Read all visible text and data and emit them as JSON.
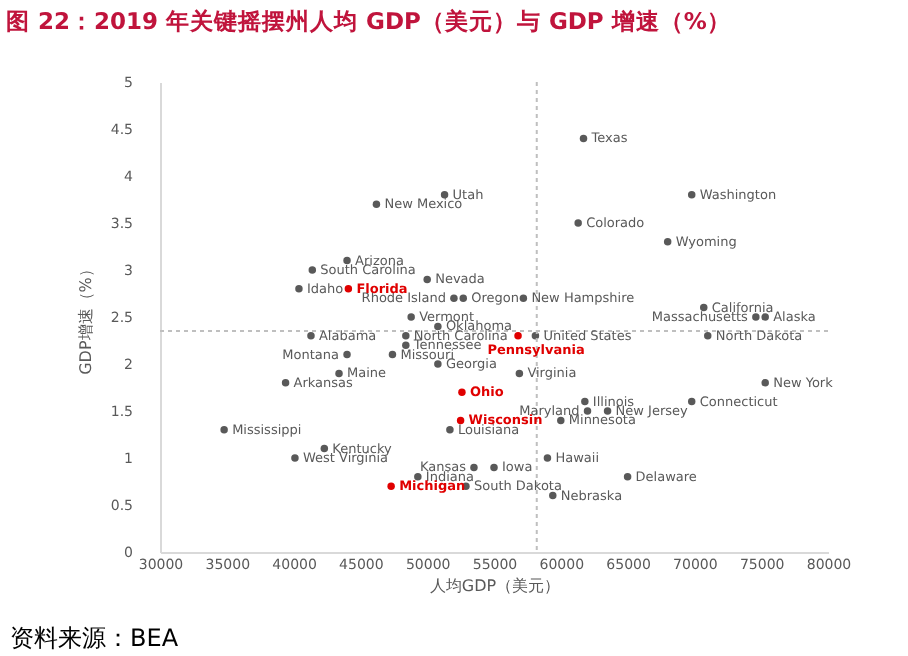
{
  "chart_data": {
    "type": "scatter",
    "title": "图 22：2019 年关键摇摆州人均 GDP（美元）与 GDP 增速（%）",
    "xlabel": "人均GDP（美元）",
    "ylabel": "GDP增速（%）",
    "xlim": [
      30000,
      80000
    ],
    "xticks": [
      30000,
      35000,
      40000,
      45000,
      50000,
      55000,
      60000,
      65000,
      70000,
      75000,
      80000
    ],
    "ylim": [
      0,
      5
    ],
    "yticks": [
      0,
      0.5,
      1,
      1.5,
      2,
      2.5,
      3,
      3.5,
      4,
      4.5,
      5
    ],
    "grid": false,
    "marker": "circle",
    "series": [
      {
        "color": "#595959",
        "x": [
          51300,
          46200,
          44000,
          41400,
          40400,
          50000,
          52000,
          52700,
          48800,
          50800,
          41300,
          48400,
          48400,
          44000,
          47400,
          61700,
          69800,
          61300,
          68000,
          70700,
          74600,
          75300,
          71000,
          57200,
          58100,
          50800,
          43400,
          39400,
          56900,
          75300,
          69800,
          61800,
          62000,
          63500,
          60000,
          34800,
          51700,
          42300,
          40100,
          59000,
          53500,
          55000,
          49300,
          52900,
          65000,
          59400
        ],
        "values": [
          3.8,
          3.7,
          3.1,
          3.0,
          2.8,
          2.9,
          2.7,
          2.7,
          2.5,
          2.4,
          2.3,
          2.3,
          2.2,
          2.1,
          2.1,
          4.4,
          3.8,
          3.5,
          3.3,
          2.6,
          2.5,
          2.5,
          2.3,
          2.7,
          2.3,
          2.0,
          1.9,
          1.8,
          1.9,
          1.8,
          1.6,
          1.6,
          1.5,
          1.5,
          1.4,
          1.3,
          1.3,
          1.1,
          1.0,
          1.0,
          0.9,
          0.9,
          0.8,
          0.7,
          0.8,
          0.6
        ]
      },
      {
        "color": "#e00000",
        "x": [
          44100,
          56800,
          52600,
          52500,
          47300
        ],
        "values": [
          2.8,
          2.3,
          1.7,
          1.4,
          0.7
        ]
      }
    ],
    "ref_lines": [
      {
        "axis": "x",
        "value": 58200,
        "color": "#bfbfbf",
        "line_style": "dotted"
      },
      {
        "axis": "y",
        "value": 2.35,
        "color": "#bfbfbf",
        "line_style": "dotted"
      }
    ],
    "annotations": [
      {
        "text": "Utah",
        "x": 51300,
        "y": 3.8
      },
      {
        "text": "New Mexico",
        "x": 46200,
        "y": 3.7
      },
      {
        "text": "Arizona",
        "x": 44000,
        "y": 3.1
      },
      {
        "text": "South Carolina",
        "x": 41400,
        "y": 3.0
      },
      {
        "text": "Idaho",
        "x": 40400,
        "y": 2.8
      },
      {
        "text": "Nevada",
        "x": 50000,
        "y": 2.9
      },
      {
        "text": "Rhode Island",
        "x": 52000,
        "y": 2.7
      },
      {
        "text": "Oregon",
        "x": 52700,
        "y": 2.7
      },
      {
        "text": "Vermont",
        "x": 48800,
        "y": 2.5
      },
      {
        "text": "Oklahoma",
        "x": 50800,
        "y": 2.4
      },
      {
        "text": "Alabama",
        "x": 41300,
        "y": 2.3
      },
      {
        "text": "North Carolina",
        "x": 48400,
        "y": 2.3
      },
      {
        "text": "Tennessee",
        "x": 48400,
        "y": 2.2
      },
      {
        "text": "Montana",
        "x": 44000,
        "y": 2.1
      },
      {
        "text": "Missouri",
        "x": 47400,
        "y": 2.1
      },
      {
        "text": "Texas",
        "x": 61700,
        "y": 4.4
      },
      {
        "text": "Washington",
        "x": 69800,
        "y": 3.8
      },
      {
        "text": "Colorado",
        "x": 61300,
        "y": 3.5
      },
      {
        "text": "Wyoming",
        "x": 68000,
        "y": 3.3
      },
      {
        "text": "California",
        "x": 70700,
        "y": 2.6
      },
      {
        "text": "Massachusetts",
        "x": 74600,
        "y": 2.5
      },
      {
        "text": "Alaska",
        "x": 75300,
        "y": 2.5
      },
      {
        "text": "North Dakota",
        "x": 71000,
        "y": 2.3
      },
      {
        "text": "New Hampshire",
        "x": 57200,
        "y": 2.7
      },
      {
        "text": "United States",
        "x": 58100,
        "y": 2.3
      },
      {
        "text": "Georgia",
        "x": 50800,
        "y": 2.0
      },
      {
        "text": "Maine",
        "x": 43400,
        "y": 1.9
      },
      {
        "text": "Arkansas",
        "x": 39400,
        "y": 1.8
      },
      {
        "text": "Virginia",
        "x": 56900,
        "y": 1.9
      },
      {
        "text": "New York",
        "x": 75300,
        "y": 1.8
      },
      {
        "text": "Connecticut",
        "x": 69800,
        "y": 1.6
      },
      {
        "text": "Illinois",
        "x": 61800,
        "y": 1.6
      },
      {
        "text": "Maryland",
        "x": 62000,
        "y": 1.5
      },
      {
        "text": "New Jersey",
        "x": 63500,
        "y": 1.5
      },
      {
        "text": "Minnesota",
        "x": 60000,
        "y": 1.4
      },
      {
        "text": "Mississippi",
        "x": 34800,
        "y": 1.3
      },
      {
        "text": "Louisiana",
        "x": 51700,
        "y": 1.3
      },
      {
        "text": "Kentucky",
        "x": 42300,
        "y": 1.1
      },
      {
        "text": "West Virginia",
        "x": 40100,
        "y": 1.0
      },
      {
        "text": "Hawaii",
        "x": 59000,
        "y": 1.0
      },
      {
        "text": "Kansas",
        "x": 53500,
        "y": 0.9
      },
      {
        "text": "Iowa",
        "x": 55000,
        "y": 0.9
      },
      {
        "text": "Indiana",
        "x": 49300,
        "y": 0.8
      },
      {
        "text": "South Dakota",
        "x": 52900,
        "y": 0.7
      },
      {
        "text": "Delaware",
        "x": 65000,
        "y": 0.8
      },
      {
        "text": "Nebraska",
        "x": 59400,
        "y": 0.6
      },
      {
        "text": "Florida",
        "x": 44100,
        "y": 2.8
      },
      {
        "text": "Pennsylvania",
        "x": 56800,
        "y": 2.3
      },
      {
        "text": "Ohio",
        "x": 52600,
        "y": 1.7
      },
      {
        "text": "Wisconsin",
        "x": 52500,
        "y": 1.4
      },
      {
        "text": "Michigan",
        "x": 47300,
        "y": 0.7
      },
      "资料来源：BEA"
    ]
  }
}
